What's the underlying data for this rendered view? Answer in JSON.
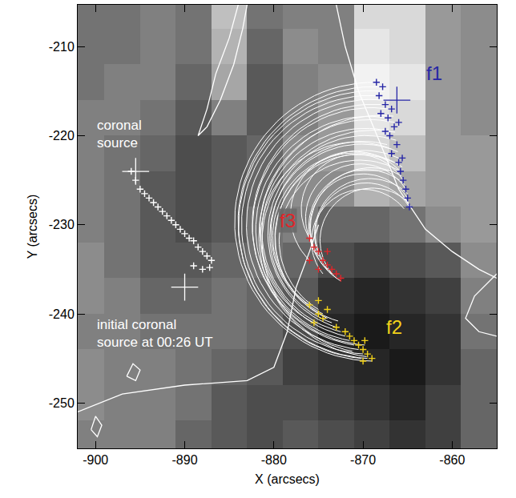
{
  "chart_data": {
    "type": "scatter",
    "xlabel": "X (arcsecs)",
    "ylabel": "Y (arcsecs)",
    "xlim": [
      -902,
      -855
    ],
    "ylim": [
      -255.1,
      -205.3
    ],
    "xticks": [
      -900,
      -890,
      -880,
      -870,
      -860
    ],
    "yticks": [
      -250,
      -240,
      -230,
      -220,
      -210
    ],
    "grid": false,
    "image": {
      "x": [
        -901,
        -897,
        -893,
        -889,
        -885,
        -881,
        -877,
        -873,
        -869,
        -865,
        -861,
        -857
      ],
      "y": [
        -254,
        -250,
        -246,
        -242,
        -238,
        -234,
        -230,
        -226,
        -222,
        -218,
        -214,
        -210,
        -206
      ],
      "zlim": [
        0,
        1
      ],
      "z": [
        [
          0.5,
          0.5,
          0.5,
          0.4,
          0.35,
          0.3,
          0.35,
          0.3,
          0.25,
          0.2,
          0.25,
          0.4
        ],
        [
          0.55,
          0.5,
          0.5,
          0.45,
          0.35,
          0.3,
          0.3,
          0.25,
          0.2,
          0.15,
          0.25,
          0.4
        ],
        [
          0.55,
          0.5,
          0.5,
          0.45,
          0.4,
          0.35,
          0.25,
          0.2,
          0.15,
          0.1,
          0.2,
          0.4
        ],
        [
          0.5,
          0.5,
          0.45,
          0.45,
          0.45,
          0.4,
          0.3,
          0.15,
          0.1,
          0.15,
          0.2,
          0.45
        ],
        [
          0.55,
          0.5,
          0.4,
          0.4,
          0.45,
          0.4,
          0.35,
          0.2,
          0.15,
          0.2,
          0.25,
          0.5
        ],
        [
          0.55,
          0.45,
          0.35,
          0.35,
          0.4,
          0.45,
          0.4,
          0.3,
          0.25,
          0.3,
          0.35,
          0.55
        ],
        [
          0.5,
          0.45,
          0.35,
          0.3,
          0.35,
          0.45,
          0.5,
          0.4,
          0.4,
          0.45,
          0.55,
          0.6
        ],
        [
          0.5,
          0.45,
          0.35,
          0.3,
          0.35,
          0.4,
          0.55,
          0.55,
          0.7,
          0.65,
          0.6,
          0.6
        ],
        [
          0.5,
          0.45,
          0.4,
          0.3,
          0.35,
          0.4,
          0.55,
          0.6,
          0.85,
          0.75,
          0.6,
          0.6
        ],
        [
          0.5,
          0.5,
          0.45,
          0.35,
          0.5,
          0.35,
          0.5,
          0.6,
          0.9,
          0.85,
          0.6,
          0.55
        ],
        [
          0.45,
          0.5,
          0.5,
          0.4,
          0.65,
          0.35,
          0.5,
          0.55,
          0.95,
          0.9,
          0.6,
          0.55
        ],
        [
          0.45,
          0.45,
          0.5,
          0.45,
          0.7,
          0.4,
          0.55,
          0.5,
          0.9,
          0.85,
          0.6,
          0.55
        ],
        [
          0.45,
          0.45,
          0.5,
          0.45,
          0.75,
          0.45,
          0.5,
          0.5,
          0.85,
          0.85,
          0.6,
          0.55
        ]
      ]
    },
    "contours": [
      {
        "x": [
          -884,
          -885,
          -886.5,
          -887.5,
          -888.5,
          -887.5,
          -886,
          -884.5,
          -883.5,
          -883
        ],
        "y": [
          -205.3,
          -209,
          -213,
          -217,
          -220,
          -219,
          -216,
          -212,
          -208,
          -205.3
        ]
      },
      {
        "x": [
          -873,
          -872,
          -870.5,
          -868,
          -866,
          -863,
          -860,
          -857,
          -855
        ],
        "y": [
          -205.3,
          -210,
          -215,
          -221,
          -226,
          -230.5,
          -233,
          -235,
          -236
        ]
      },
      {
        "x": [
          -875,
          -876,
          -877.5,
          -878.5,
          -880,
          -883,
          -890,
          -897,
          -902
        ],
        "y": [
          -230,
          -233,
          -237,
          -242,
          -246,
          -247.5,
          -248,
          -249,
          -251
        ]
      },
      {
        "x": [
          -896.5,
          -895.8,
          -895,
          -895.5,
          -896.5
        ],
        "y": [
          -247,
          -245.6,
          -246.3,
          -247.5,
          -247
        ]
      },
      {
        "x": [
          -900.5,
          -900,
          -899.3,
          -899.8,
          -900.5
        ],
        "y": [
          -253,
          -251.5,
          -252.5,
          -253.8,
          -253
        ]
      },
      {
        "x": [
          -855,
          -857.5,
          -858.5,
          -857,
          -855
        ],
        "y": [
          -235.5,
          -238,
          -240.5,
          -242,
          -242.5
        ]
      }
    ],
    "field_lines": [
      {
        "from": [
          -868.5,
          -214
        ],
        "to": [
          -869,
          -245.3
        ]
      },
      {
        "from": [
          -868,
          -214.5
        ],
        "to": [
          -869.5,
          -245
        ]
      },
      {
        "from": [
          -868.2,
          -215.5
        ],
        "to": [
          -870,
          -244.5
        ]
      },
      {
        "from": [
          -867.5,
          -216
        ],
        "to": [
          -870.5,
          -244
        ]
      },
      {
        "from": [
          -867,
          -217
        ],
        "to": [
          -871,
          -243.5
        ]
      },
      {
        "from": [
          -867.2,
          -218
        ],
        "to": [
          -871.5,
          -243
        ]
      },
      {
        "from": [
          -866.5,
          -218.5
        ],
        "to": [
          -872,
          -242.5
        ]
      },
      {
        "from": [
          -867,
          -219.5
        ],
        "to": [
          -872.5,
          -242
        ]
      },
      {
        "from": [
          -866.3,
          -220.5
        ],
        "to": [
          -873,
          -241.5
        ]
      },
      {
        "from": [
          -866.8,
          -221.5
        ],
        "to": [
          -873.5,
          -241
        ]
      },
      {
        "from": [
          -866,
          -222.5
        ],
        "to": [
          -874,
          -240.5
        ]
      },
      {
        "from": [
          -866.5,
          -223
        ],
        "to": [
          -874.5,
          -240
        ]
      },
      {
        "from": [
          -865.8,
          -224
        ],
        "to": [
          -875,
          -239.5
        ]
      },
      {
        "from": [
          -868,
          -216.5
        ],
        "to": [
          -869.8,
          -243.5
        ]
      },
      {
        "from": [
          -867.6,
          -215
        ],
        "to": [
          -870.2,
          -245
        ]
      },
      {
        "from": [
          -866.4,
          -219.6
        ],
        "to": [
          -871.2,
          -244.2
        ]
      },
      {
        "from": [
          -867.3,
          -221
        ],
        "to": [
          -872.8,
          -240.8
        ]
      },
      {
        "from": [
          -866.1,
          -221.8
        ],
        "to": [
          -875.5,
          -241
        ]
      },
      {
        "from": [
          -865.6,
          -223.5
        ],
        "to": [
          -876,
          -239
        ]
      },
      {
        "from": [
          -866.6,
          -217.8
        ],
        "to": [
          -869.6,
          -244.8
        ]
      },
      {
        "from": [
          -865.5,
          -225
        ],
        "to": [
          -876,
          -231.5
        ]
      },
      {
        "from": [
          -865.2,
          -226
        ],
        "to": [
          -875.5,
          -232.5
        ]
      },
      {
        "from": [
          -865,
          -227
        ],
        "to": [
          -875,
          -233.5
        ]
      },
      {
        "from": [
          -864.8,
          -228
        ],
        "to": [
          -874.5,
          -234
        ]
      },
      {
        "from": [
          -865.3,
          -225.5
        ],
        "to": [
          -874,
          -235
        ]
      },
      {
        "from": [
          -865,
          -226.5
        ],
        "to": [
          -873.5,
          -235.5
        ]
      },
      {
        "from": [
          -864.9,
          -227.5
        ],
        "to": [
          -873,
          -236
        ]
      },
      {
        "from": [
          -865.7,
          -224.5
        ],
        "to": [
          -872.5,
          -236.3
        ]
      },
      {
        "from": [
          -866,
          -223.8
        ],
        "to": [
          -876,
          -234
        ]
      },
      {
        "from": [
          -865.4,
          -228.2
        ],
        "to": [
          -874.5,
          -235.5
        ]
      }
    ],
    "series": [
      {
        "name": "coronal source",
        "color": "#ffffff",
        "marker": "plus",
        "x": [
          -896,
          -895.5,
          -895,
          -894.5,
          -894,
          -893.5,
          -893,
          -892.5,
          -892,
          -891.5,
          -891,
          -890.5,
          -890,
          -889.5,
          -889,
          -888.5,
          -888,
          -887.5,
          -887,
          -887.2,
          -888,
          -889
        ],
        "y": [
          -224,
          -225,
          -226,
          -226.5,
          -227,
          -227.5,
          -228,
          -228.5,
          -229,
          -229.5,
          -230,
          -230.5,
          -231,
          -231.5,
          -231.8,
          -232.5,
          -233,
          -233.5,
          -234,
          -234.8,
          -235,
          -234.6
        ]
      },
      {
        "name": "coronal source",
        "color": "#ffffff",
        "marker": "big_plus",
        "x": [
          -895.5
        ],
        "y": [
          -224
        ]
      },
      {
        "name": "initial coronal source at 00:26 UT",
        "color": "#ffffff",
        "marker": "big_plus",
        "x": [
          -890
        ],
        "y": [
          -237
        ]
      },
      {
        "name": "f1",
        "color": "#2626a6",
        "marker": "plus",
        "x": [
          -868.5,
          -867.8,
          -868.2,
          -867.5,
          -866.8,
          -867.2,
          -866.5,
          -867,
          -866.2,
          -866.8,
          -866,
          -865.8,
          -865.5,
          -865.2,
          -865,
          -864.8,
          -866,
          -867.5,
          -868,
          -865.6
        ],
        "y": [
          -214,
          -214.5,
          -215.5,
          -216.5,
          -217,
          -218,
          -219,
          -220,
          -221,
          -222,
          -223,
          -224,
          -225,
          -226,
          -227,
          -228,
          -218.5,
          -219.5,
          -217.5,
          -222.5
        ]
      },
      {
        "name": "f1",
        "color": "#2626a6",
        "marker": "big_plus",
        "x": [
          -866.2
        ],
        "y": [
          -216
        ]
      },
      {
        "name": "f2",
        "color": "#f2d21a",
        "marker": "plus",
        "x": [
          -876,
          -875,
          -874.5,
          -875.5,
          -874,
          -873,
          -872,
          -871,
          -870.5,
          -870,
          -869.5,
          -869,
          -870,
          -871.5,
          -869.8,
          -875
        ],
        "y": [
          -239,
          -240,
          -240.5,
          -241,
          -239.5,
          -241.5,
          -242,
          -243,
          -243.5,
          -244,
          -244.5,
          -245,
          -245.3,
          -242.5,
          -243,
          -238.5
        ]
      },
      {
        "name": "f3",
        "color": "#e0262a",
        "marker": "plus",
        "x": [
          -876,
          -875.5,
          -875,
          -874.5,
          -874,
          -873.5,
          -873,
          -872.5,
          -875,
          -876,
          -874
        ],
        "y": [
          -231.5,
          -232.5,
          -233,
          -234,
          -234.5,
          -235,
          -235.5,
          -236,
          -235,
          -234,
          -233
        ]
      }
    ],
    "annotations": [
      {
        "text": "f1",
        "x": -862,
        "y": -213,
        "color": "#2626a6"
      },
      {
        "text": "f2",
        "x": -866.5,
        "y": -241.5,
        "color": "#f2d21a"
      },
      {
        "text": "f3",
        "x": -878.5,
        "y": -229.5,
        "color": "#e0262a"
      },
      {
        "text": "coronal\nsource",
        "x": -900,
        "y": -219.8,
        "color": "#ffffff"
      },
      {
        "text": "initial coronal\nsource at 00:26 UT",
        "x": -900,
        "y": -242.2,
        "color": "#ffffff"
      }
    ]
  }
}
